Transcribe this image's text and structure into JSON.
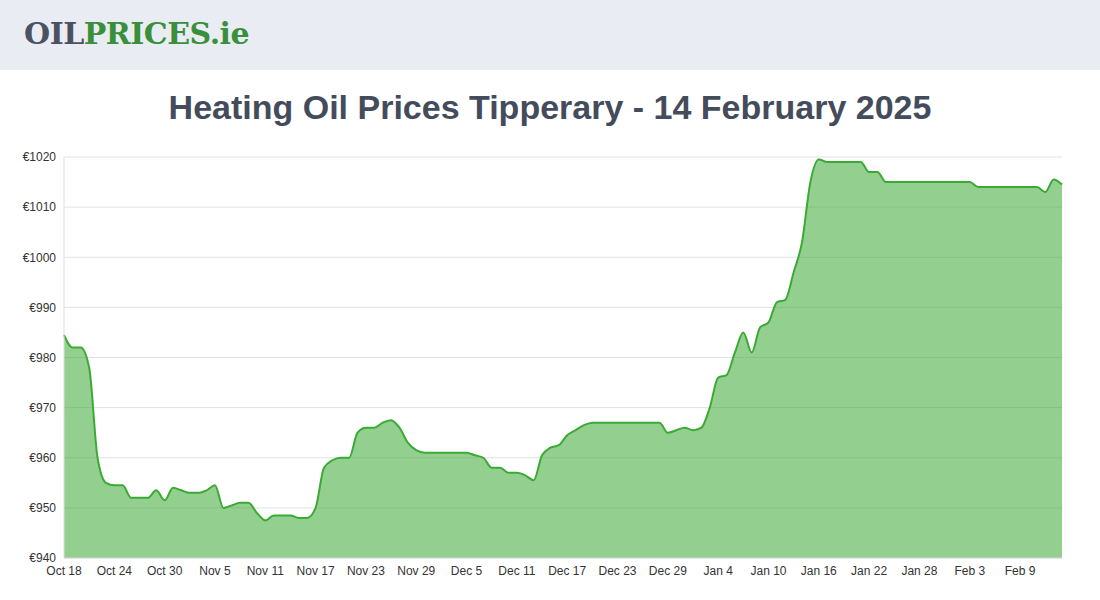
{
  "header": {
    "logo": [
      "OIL",
      "PRICES.ie"
    ]
  },
  "chart_data": {
    "type": "area",
    "title": "Heating Oil Prices Tipperary - 14 February 2025",
    "color": "#3aaa35",
    "grid": true,
    "ylim": [
      940,
      1020
    ],
    "yticks": [
      {
        "value": 940,
        "label": "€940"
      },
      {
        "value": 950,
        "label": "€950"
      },
      {
        "value": 960,
        "label": "€960"
      },
      {
        "value": 970,
        "label": "€970"
      },
      {
        "value": 980,
        "label": "€980"
      },
      {
        "value": 990,
        "label": "€990"
      },
      {
        "value": 1000,
        "label": "€1000"
      },
      {
        "value": 1010,
        "label": "€1010"
      },
      {
        "value": 1020,
        "label": "€1020"
      }
    ],
    "categories": [
      "Oct 18",
      null,
      null,
      null,
      null,
      null,
      "Oct 24",
      null,
      null,
      null,
      null,
      null,
      "Oct 30",
      null,
      null,
      null,
      null,
      null,
      "Nov 5",
      null,
      null,
      null,
      null,
      null,
      "Nov 11",
      null,
      null,
      null,
      null,
      null,
      "Nov 17",
      null,
      null,
      null,
      null,
      null,
      "Nov 23",
      null,
      null,
      null,
      null,
      null,
      "Nov 29",
      null,
      null,
      null,
      null,
      null,
      "Dec 5",
      null,
      null,
      null,
      null,
      null,
      "Dec 11",
      null,
      null,
      null,
      null,
      null,
      "Dec 17",
      null,
      null,
      null,
      null,
      null,
      "Dec 23",
      null,
      null,
      null,
      null,
      null,
      "Dec 29",
      null,
      null,
      null,
      null,
      null,
      "Jan 4",
      null,
      null,
      null,
      null,
      null,
      "Jan 10",
      null,
      null,
      null,
      null,
      null,
      "Jan 16",
      null,
      null,
      null,
      null,
      null,
      "Jan 22",
      null,
      null,
      null,
      null,
      null,
      "Jan 28",
      null,
      null,
      null,
      null,
      null,
      "Feb 3",
      null,
      null,
      null,
      null,
      null,
      "Feb 9",
      null,
      null,
      null,
      null,
      null
    ],
    "values": [
      984.5,
      982,
      982,
      978,
      960,
      955,
      954.5,
      954.5,
      952,
      952,
      952,
      953.5,
      951.5,
      954,
      953.5,
      953,
      953,
      953.5,
      954.5,
      950,
      950.5,
      951,
      951,
      949,
      947.5,
      948.5,
      948.5,
      948.5,
      948,
      948,
      950,
      958,
      959.5,
      960,
      960,
      965,
      966,
      966,
      967,
      967.5,
      966,
      963,
      961.5,
      961,
      961,
      961,
      961,
      961,
      961,
      960.5,
      960,
      958,
      958,
      957,
      957,
      956.5,
      955.5,
      960.5,
      962,
      962.5,
      964.5,
      965.5,
      966.5,
      967,
      967,
      967,
      967,
      967,
      967,
      967,
      967,
      967,
      965,
      965.5,
      966,
      965.5,
      966,
      970,
      976,
      976.5,
      981,
      985,
      981,
      986,
      987,
      991,
      991.5,
      997,
      1003,
      1015,
      1019.5,
      1019,
      1019,
      1019,
      1019,
      1019,
      1017,
      1017,
      1015,
      1015,
      1015,
      1015,
      1015,
      1015,
      1015,
      1015,
      1015,
      1015,
      1015,
      1014,
      1014,
      1014,
      1014,
      1014,
      1014,
      1014,
      1014,
      1013,
      1015.5,
      1014.5
    ]
  }
}
